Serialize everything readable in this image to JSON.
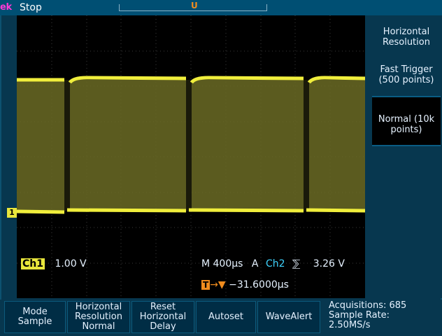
{
  "topbar": {
    "brand": "ek",
    "run_status": "Stop",
    "record_marker": "U",
    "trigger_marker": "T"
  },
  "side_menu": {
    "title": "Horizontal Resolution",
    "items": [
      {
        "label": "Fast Trigger (500 points)",
        "selected": false
      },
      {
        "label": "Normal (10k points)",
        "selected": true
      }
    ]
  },
  "readouts": {
    "ch1_label": "Ch1",
    "ch1_scale": "1.00 V",
    "timebase": "M 400µs",
    "trigger_mode_letter": "A",
    "trigger_source": "Ch2",
    "trigger_slope": "⅀",
    "trigger_level": "3.26 V",
    "trigger_offset": "−31.6000µs",
    "ch1_marker": "1"
  },
  "bottom_buttons": [
    {
      "line1": "Mode",
      "line2": "Sample"
    },
    {
      "line1": "Horizontal",
      "line2": "Resolution",
      "line3": "Normal"
    },
    {
      "line1": "Reset",
      "line2": "Horizontal",
      "line3": "Delay"
    },
    {
      "line1": "Autoset"
    },
    {
      "line1": "WaveAlert"
    }
  ],
  "acquisition": {
    "line1": "Acquisitions: 685",
    "line2": "Sample Rate:",
    "line3": "2.50MS/s"
  },
  "colors": {
    "ch1": "#e8e63c",
    "ch2": "#3fd4ff",
    "trigger": "#f08c1e"
  }
}
